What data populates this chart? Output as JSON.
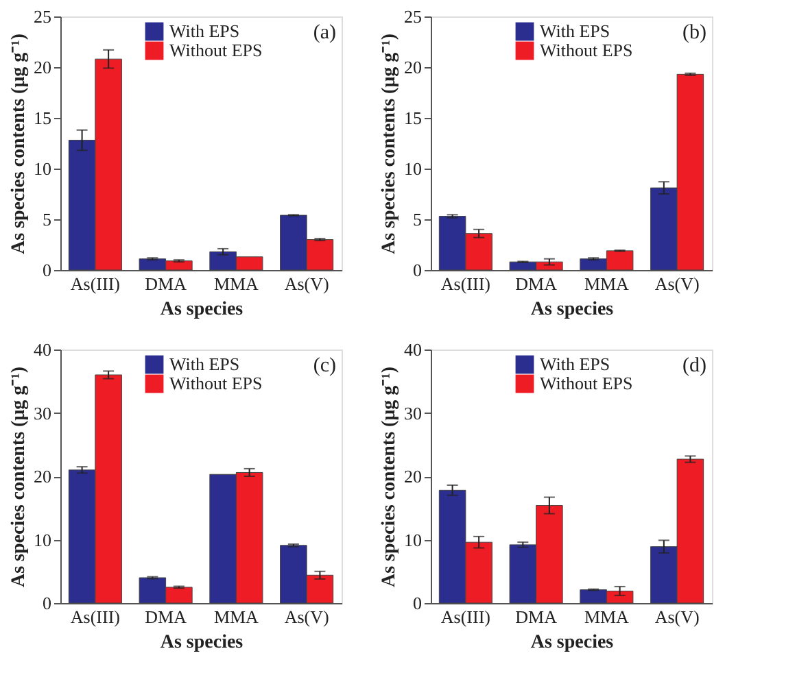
{
  "chart_data": [
    {
      "type": "bar",
      "xlabel": "As species",
      "ylabel": "As species contents (μg g⁻¹)",
      "annotations": [
        "(a)"
      ],
      "categories": [
        "As(III)",
        "DMA",
        "MMA",
        "As(V)"
      ],
      "ylim": [
        0,
        25
      ],
      "yticks": [
        0,
        5,
        10,
        15,
        20,
        25
      ],
      "legend": "top",
      "grid": false,
      "series": [
        {
          "name": "With EPS",
          "color": "#2b2e8f",
          "values": [
            12.8,
            1.1,
            1.8,
            5.4
          ],
          "errors": [
            1.0,
            0.1,
            0.3,
            0.05
          ]
        },
        {
          "name": "Without EPS",
          "color": "#ee1c25",
          "values": [
            20.8,
            0.9,
            1.3,
            3.0
          ],
          "errors": [
            0.9,
            0.1,
            null,
            0.1
          ]
        }
      ]
    },
    {
      "type": "bar",
      "xlabel": "As species",
      "ylabel": "As species contents (μg g⁻¹)",
      "annotations": [
        "(b)"
      ],
      "categories": [
        "As(III)",
        "DMA",
        "MMA",
        "As(V)"
      ],
      "ylim": [
        0,
        25
      ],
      "yticks": [
        0,
        5,
        10,
        15,
        20,
        25
      ],
      "legend": "top",
      "grid": false,
      "series": [
        {
          "name": "With EPS",
          "color": "#2b2e8f",
          "values": [
            5.3,
            0.8,
            1.1,
            8.1
          ],
          "errors": [
            0.15,
            0.05,
            0.1,
            0.6
          ]
        },
        {
          "name": "Without EPS",
          "color": "#ee1c25",
          "values": [
            3.6,
            0.8,
            1.9,
            19.3
          ],
          "errors": [
            0.4,
            0.3,
            0.05,
            0.1
          ]
        }
      ]
    },
    {
      "type": "bar",
      "xlabel": "As species",
      "ylabel": "As species contents (μg g⁻¹)",
      "annotations": [
        "(c)"
      ],
      "categories": [
        "As(III)",
        "DMA",
        "MMA",
        "As(V)"
      ],
      "ylim": [
        0,
        40
      ],
      "yticks": [
        0,
        10,
        20,
        30,
        40
      ],
      "legend": "top",
      "grid": false,
      "series": [
        {
          "name": "With EPS",
          "color": "#2b2e8f",
          "values": [
            21.0,
            4.0,
            20.3,
            9.1
          ],
          "errors": [
            0.5,
            0.15,
            null,
            0.2
          ]
        },
        {
          "name": "Without EPS",
          "color": "#ee1c25",
          "values": [
            36.0,
            2.5,
            20.6,
            4.4
          ],
          "errors": [
            0.6,
            0.15,
            0.6,
            0.6
          ]
        }
      ]
    },
    {
      "type": "bar",
      "xlabel": "As species",
      "ylabel": "As species contents (μg g⁻¹)",
      "annotations": [
        "(d)"
      ],
      "categories": [
        "As(III)",
        "DMA",
        "MMA",
        "As(V)"
      ],
      "ylim": [
        0,
        40
      ],
      "yticks": [
        0,
        10,
        20,
        30,
        40
      ],
      "legend": "top",
      "grid": false,
      "series": [
        {
          "name": "With EPS",
          "color": "#2b2e8f",
          "values": [
            17.8,
            9.2,
            2.1,
            8.9
          ],
          "errors": [
            0.8,
            0.4,
            0.1,
            1.0
          ]
        },
        {
          "name": "Without EPS",
          "color": "#ee1c25",
          "values": [
            9.6,
            15.4,
            1.9,
            22.7
          ],
          "errors": [
            0.9,
            1.3,
            0.7,
            0.5
          ]
        }
      ]
    }
  ]
}
